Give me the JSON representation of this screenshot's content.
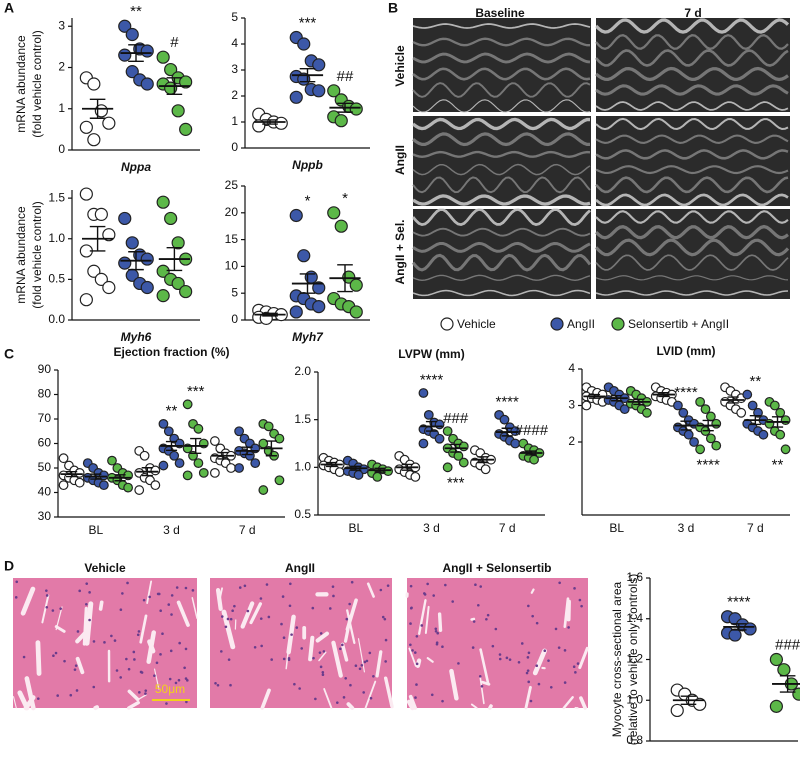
{
  "figure": {
    "panel_labels": [
      "A",
      "B",
      "C",
      "D"
    ],
    "echo": {
      "columns": [
        "Baseline",
        "7 d"
      ],
      "rows": [
        "Vehicle",
        "AngII",
        "AngII + Sel."
      ]
    },
    "legend": [
      {
        "name": "Vehicle",
        "color": "#ffffff"
      },
      {
        "name": "AngII",
        "color": "#3c58a8"
      },
      {
        "name": "Selonsertib + AngII",
        "color": "#5cb848"
      }
    ],
    "histology": {
      "labels": [
        "Vehicle",
        "AngII",
        "AngII + Selonsertib"
      ],
      "scale_bar": "50μm"
    }
  },
  "chart_data": [
    {
      "type": "dot",
      "ylabel": [
        "mRNA abundance",
        "(fold vehicle control)"
      ],
      "categories": [
        "Nppa"
      ],
      "ylim": [
        0,
        3.2
      ],
      "yticks": [
        0,
        1,
        2,
        3
      ],
      "series": [
        {
          "color": "#ffffff",
          "values": [
            [
              1.75,
              1.6,
              0.95,
              0.65,
              0.55,
              0.25
            ]
          ],
          "means": [
            1.0
          ],
          "sems": [
            0.23
          ]
        },
        {
          "color": "#3c58a8",
          "values": [
            [
              3.0,
              2.8,
              2.45,
              2.4,
              2.3,
              1.9,
              1.7,
              1.6
            ]
          ],
          "means": [
            2.35
          ],
          "sems": [
            0.2
          ]
        },
        {
          "color": "#5cb848",
          "values": [
            [
              2.25,
              1.95,
              1.75,
              1.65,
              1.6,
              1.5,
              0.95,
              0.5
            ]
          ],
          "means": [
            1.55
          ],
          "sems": [
            0.2
          ]
        }
      ],
      "annotations": [
        {
          "text": "**",
          "category": 0,
          "series": 1
        },
        {
          "text": "#",
          "category": 0,
          "series": 2
        }
      ]
    },
    {
      "type": "dot",
      "categories": [
        "Nppb"
      ],
      "ylim": [
        0,
        5
      ],
      "yticks": [
        0,
        1,
        2,
        3,
        4,
        5
      ],
      "series": [
        {
          "color": "#ffffff",
          "values": [
            [
              1.3,
              1.1,
              1.0,
              0.95,
              0.85
            ]
          ],
          "means": [
            1.0
          ],
          "sems": [
            0.08
          ]
        },
        {
          "color": "#3c58a8",
          "values": [
            [
              4.25,
              4.0,
              3.35,
              3.2,
              2.75,
              2.65,
              2.25,
              2.2,
              1.95
            ]
          ],
          "means": [
            2.8
          ],
          "sems": [
            0.25
          ]
        },
        {
          "color": "#5cb848",
          "values": [
            [
              2.2,
              1.85,
              1.6,
              1.5,
              1.2,
              1.05
            ]
          ],
          "means": [
            1.55
          ],
          "sems": [
            0.17
          ]
        }
      ],
      "annotations": [
        {
          "text": "***",
          "category": 0,
          "series": 1
        },
        {
          "text": "##",
          "category": 0,
          "series": 2
        }
      ]
    },
    {
      "type": "dot",
      "ylabel": [
        "mRNA abundance",
        "(fold vehicle control)"
      ],
      "categories": [
        "Myh6"
      ],
      "ylim": [
        0,
        1.6
      ],
      "yticks": [
        {
          "value": 0,
          "label": "0.0"
        },
        0.5,
        {
          "value": 1,
          "label": "1.0"
        },
        1.5
      ],
      "series": [
        {
          "color": "#ffffff",
          "values": [
            [
              1.55,
              1.3,
              1.3,
              1.05,
              0.85,
              0.6,
              0.5,
              0.4,
              0.25
            ]
          ],
          "means": [
            1.0
          ],
          "sems": [
            0.15
          ]
        },
        {
          "color": "#3c58a8",
          "values": [
            [
              1.25,
              0.95,
              0.8,
              0.75,
              0.7,
              0.55,
              0.45,
              0.4
            ]
          ],
          "means": [
            0.73
          ],
          "sems": [
            0.11
          ]
        },
        {
          "color": "#5cb848",
          "values": [
            [
              1.45,
              1.25,
              0.95,
              0.75,
              0.6,
              0.5,
              0.45,
              0.35,
              0.3
            ]
          ],
          "means": [
            0.75
          ],
          "sems": [
            0.14
          ]
        }
      ],
      "annotations": []
    },
    {
      "type": "dot",
      "categories": [
        "Myh7"
      ],
      "ylim": [
        0,
        25
      ],
      "yticks": [
        0,
        5,
        10,
        15,
        20,
        25
      ],
      "series": [
        {
          "color": "#ffffff",
          "values": [
            [
              1.8,
              1.5,
              1.2,
              1.0,
              0.5,
              0.3
            ]
          ],
          "means": [
            1.0
          ],
          "sems": [
            0.25
          ]
        },
        {
          "color": "#3c58a8",
          "values": [
            [
              19.5,
              12,
              8,
              6,
              4.5,
              4,
              3,
              2.5,
              1.5
            ]
          ],
          "means": [
            6.8
          ],
          "sems": [
            1.8
          ]
        },
        {
          "color": "#5cb848",
          "values": [
            [
              20,
              17.5,
              8,
              6.5,
              4,
              3,
              2.5,
              1.5
            ]
          ],
          "means": [
            7.8
          ],
          "sems": [
            2.5
          ]
        }
      ],
      "annotations": [
        {
          "text": "*",
          "category": 0,
          "series": 1
        },
        {
          "text": "*",
          "category": 0,
          "series": 2
        }
      ]
    },
    {
      "type": "dot",
      "title": "Ejection fraction (%)",
      "categories": [
        "BL",
        "3 d",
        "7 d"
      ],
      "ylim": [
        30,
        90
      ],
      "yticks": [
        30,
        40,
        50,
        60,
        70,
        80,
        90
      ],
      "series": [
        {
          "color": "#ffffff",
          "values": [
            [
              54,
              51,
              49,
              48,
              47,
              46,
              45,
              44,
              43
            ],
            [
              57,
              55,
              50,
              49,
              48,
              46,
              45,
              43,
              41
            ],
            [
              61,
              58,
              56,
              55,
              54,
              53,
              52,
              50,
              48
            ]
          ],
          "means": [
            47.5,
            48.5,
            55
          ],
          "sems": [
            1,
            1.6,
            1.3
          ]
        },
        {
          "color": "#3c58a8",
          "values": [
            [
              52,
              50,
              48,
              47,
              46,
              45,
              44,
              43
            ],
            [
              68,
              65,
              62,
              60,
              58,
              57,
              55,
              52,
              51
            ],
            [
              65,
              62,
              60,
              58,
              57,
              56,
              55,
              52,
              50
            ]
          ],
          "means": [
            46.5,
            59,
            57
          ],
          "sems": [
            1,
            1.8,
            1.5
          ]
        },
        {
          "color": "#5cb848",
          "values": [
            [
              53,
              50,
              48,
              47,
              46,
              45,
              43,
              42
            ],
            [
              76,
              68,
              66,
              60,
              58,
              55,
              52,
              48,
              47
            ],
            [
              68,
              67,
              64,
              62,
              60,
              57,
              55,
              45,
              41
            ]
          ],
          "means": [
            46,
            59,
            58
          ],
          "sems": [
            1.2,
            3,
            3
          ]
        }
      ],
      "annotations": [
        {
          "text": "**",
          "category": 1,
          "series": 1
        },
        {
          "text": "***",
          "category": 1,
          "series": 2
        }
      ]
    },
    {
      "type": "dot",
      "title": "LVPW (mm)",
      "categories": [
        "BL",
        "3 d",
        "7 d"
      ],
      "ylim": [
        0.5,
        2.0
      ],
      "yticks": [
        0.5,
        {
          "value": 1,
          "label": "1.0"
        },
        1.5,
        {
          "value": 2,
          "label": "2.0"
        }
      ],
      "series": [
        {
          "color": "#ffffff",
          "values": [
            [
              1.1,
              1.07,
              1.05,
              1.03,
              1.02,
              1.0,
              0.98,
              0.95
            ],
            [
              1.12,
              1.08,
              1.03,
              1.0,
              0.98,
              0.95,
              0.92,
              0.9
            ],
            [
              1.18,
              1.15,
              1.1,
              1.08,
              1.05,
              1.02,
              0.98
            ]
          ],
          "means": [
            1.03,
            1.0,
            1.08
          ],
          "sems": [
            0.02,
            0.03,
            0.03
          ]
        },
        {
          "color": "#3c58a8",
          "values": [
            [
              1.07,
              1.04,
              1.0,
              0.98,
              0.96,
              0.94,
              0.92
            ],
            [
              1.78,
              1.55,
              1.47,
              1.45,
              1.4,
              1.38,
              1.35,
              1.3,
              1.25
            ],
            [
              1.55,
              1.5,
              1.42,
              1.38,
              1.35,
              1.32,
              1.28,
              1.25
            ]
          ],
          "means": [
            0.99,
            1.43,
            1.37
          ],
          "sems": [
            0.02,
            0.05,
            0.04
          ]
        },
        {
          "color": "#5cb848",
          "values": [
            [
              1.03,
              1.0,
              0.98,
              0.96,
              0.94,
              0.9
            ],
            [
              1.38,
              1.3,
              1.25,
              1.22,
              1.2,
              1.15,
              1.12,
              1.05,
              1.0
            ],
            [
              1.25,
              1.2,
              1.18,
              1.15,
              1.12,
              1.1,
              1.08
            ]
          ],
          "means": [
            0.97,
            1.2,
            1.15
          ],
          "sems": [
            0.02,
            0.04,
            0.02
          ]
        }
      ],
      "annotations": [
        {
          "text": "****",
          "category": 1,
          "series": 1
        },
        {
          "text": "###",
          "category": 1,
          "series": 2
        },
        {
          "text": "***",
          "category": 1,
          "series": 2,
          "below": true
        },
        {
          "text": "****",
          "category": 2,
          "series": 1
        },
        {
          "text": "####",
          "category": 2,
          "series": 2
        }
      ]
    },
    {
      "type": "dot",
      "title": "LVID (mm)",
      "categories": [
        "BL",
        "3 d",
        "7 d"
      ],
      "ylim": [
        0,
        4
      ],
      "yticks": [
        2,
        3,
        4
      ],
      "series": [
        {
          "color": "#ffffff",
          "values": [
            [
              3.5,
              3.4,
              3.35,
              3.3,
              3.25,
              3.2,
              3.15,
              3.1,
              3.0
            ],
            [
              3.5,
              3.4,
              3.35,
              3.3,
              3.25,
              3.2,
              3.15,
              3.1
            ],
            [
              3.5,
              3.4,
              3.3,
              3.2,
              3.1,
              3.0,
              2.9,
              2.8
            ]
          ],
          "means": [
            3.25,
            3.3,
            3.15
          ],
          "sems": [
            0.05,
            0.05,
            0.08
          ]
        },
        {
          "color": "#3c58a8",
          "values": [
            [
              3.5,
              3.4,
              3.3,
              3.2,
              3.15,
              3.1,
              3.0,
              2.9
            ],
            [
              3.0,
              2.8,
              2.6,
              2.5,
              2.4,
              2.3,
              2.2,
              2.0
            ],
            [
              3.3,
              3.0,
              2.8,
              2.6,
              2.5,
              2.4,
              2.3,
              2.2
            ]
          ],
          "means": [
            3.2,
            2.45,
            2.6
          ],
          "sems": [
            0.07,
            0.12,
            0.12
          ]
        },
        {
          "color": "#5cb848",
          "values": [
            [
              3.4,
              3.3,
              3.2,
              3.1,
              3.05,
              3.0,
              2.9,
              2.8
            ],
            [
              3.1,
              2.9,
              2.7,
              2.5,
              2.4,
              2.3,
              2.1,
              1.9,
              1.8
            ],
            [
              3.1,
              3.0,
              2.8,
              2.6,
              2.5,
              2.3,
              2.2,
              1.8
            ]
          ],
          "means": [
            3.1,
            2.45,
            2.55
          ],
          "sems": [
            0.07,
            0.14,
            0.14
          ]
        }
      ],
      "annotations": [
        {
          "text": "****",
          "category": 1,
          "series": 1
        },
        {
          "text": "****",
          "category": 1,
          "series": 2,
          "below": true
        },
        {
          "text": "**",
          "category": 2,
          "series": 1
        },
        {
          "text": "**",
          "category": 2,
          "series": 2,
          "below": true
        }
      ]
    },
    {
      "type": "dot",
      "ylabel": [
        "Myocyte cross-sectional area",
        "(relative to vehicle only controls)"
      ],
      "categories": [
        null
      ],
      "ylim": [
        0.8,
        1.6
      ],
      "yticks": [
        0.8,
        {
          "value": 1,
          "label": "1.0"
        },
        1.2,
        1.4,
        1.6
      ],
      "series": [
        {
          "color": "#ffffff",
          "values": [
            [
              1.05,
              1.03,
              1.0,
              0.98,
              0.95
            ]
          ],
          "means": [
            1.0
          ],
          "sems": [
            0.02
          ]
        },
        {
          "color": "#3c58a8",
          "values": [
            [
              1.41,
              1.4,
              1.37,
              1.35,
              1.33,
              1.32
            ]
          ],
          "means": [
            1.36
          ],
          "sems": [
            0.015
          ]
        },
        {
          "color": "#5cb848",
          "values": [
            [
              1.2,
              1.15,
              1.08,
              1.03,
              0.97
            ]
          ],
          "means": [
            1.08
          ],
          "sems": [
            0.04
          ]
        }
      ],
      "annotations": [
        {
          "text": "****",
          "category": 0,
          "series": 1
        },
        {
          "text": "###",
          "category": 0,
          "series": 2
        }
      ]
    }
  ]
}
